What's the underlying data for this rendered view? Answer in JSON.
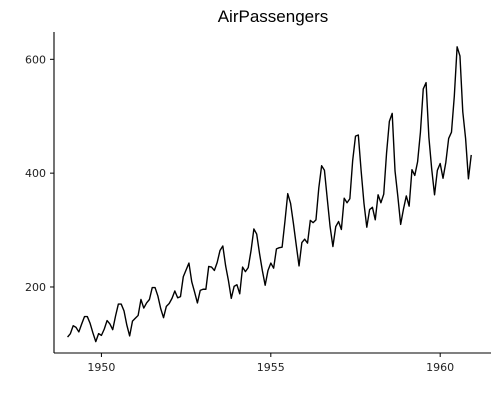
{
  "chart_data": {
    "type": "line",
    "title": "AirPassengers",
    "xlabel": "",
    "ylabel": "",
    "xlim": [
      1948.6,
      1961.5
    ],
    "ylim": [
      84,
      648
    ],
    "x_ticks": [
      1950,
      1955,
      1960
    ],
    "y_ticks": [
      200,
      400,
      600
    ],
    "grid": false,
    "start": 1949,
    "frequency": 12,
    "series": [
      {
        "values": [
          112,
          118,
          132,
          129,
          121,
          135,
          148,
          148,
          136,
          119,
          104,
          118,
          115,
          126,
          141,
          135,
          125,
          149,
          170,
          170,
          158,
          133,
          114,
          140,
          145,
          150,
          178,
          163,
          172,
          178,
          199,
          199,
          184,
          162,
          146,
          166,
          171,
          180,
          193,
          181,
          183,
          218,
          230,
          242,
          209,
          191,
          172,
          194,
          196,
          196,
          236,
          235,
          229,
          243,
          264,
          272,
          237,
          211,
          180,
          201,
          204,
          188,
          235,
          227,
          234,
          264,
          302,
          293,
          259,
          229,
          203,
          229,
          242,
          233,
          267,
          269,
          270,
          315,
          364,
          347,
          312,
          274,
          237,
          278,
          284,
          277,
          317,
          313,
          318,
          374,
          413,
          405,
          355,
          306,
          271,
          306,
          315,
          301,
          356,
          348,
          355,
          422,
          465,
          467,
          404,
          347,
          305,
          336,
          340,
          318,
          362,
          348,
          363,
          435,
          491,
          505,
          404,
          359,
          310,
          337,
          360,
          342,
          406,
          396,
          420,
          472,
          548,
          559,
          463,
          407,
          362,
          405,
          417,
          391,
          419,
          461,
          472,
          535,
          622,
          606,
          508,
          461,
          390,
          432
        ]
      }
    ]
  }
}
